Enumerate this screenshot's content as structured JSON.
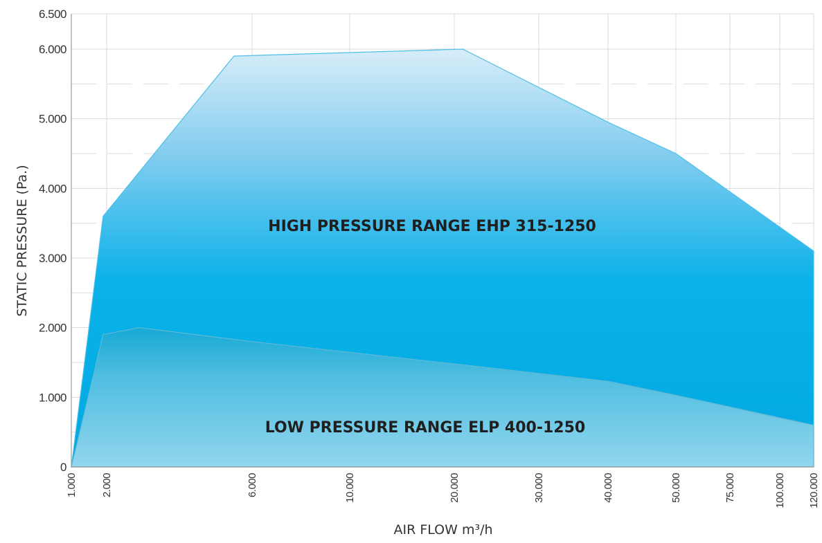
{
  "chart_data": {
    "type": "area",
    "xlabel": "AIR FLOW m³/h",
    "ylabel": "STATIC PRESSURE (Pa.)",
    "x_scale": "categorical-log-like",
    "x_ticks": [
      {
        "value": 1000,
        "label": "1.000"
      },
      {
        "value": 2000,
        "label": "2.000"
      },
      {
        "value": 6000,
        "label": "6.000"
      },
      {
        "value": 10000,
        "label": "10.000"
      },
      {
        "value": 20000,
        "label": "20.000"
      },
      {
        "value": 30000,
        "label": "30.000"
      },
      {
        "value": 40000,
        "label": "40.000"
      },
      {
        "value": 50000,
        "label": "50.000"
      },
      {
        "value": 75000,
        "label": "75.000"
      },
      {
        "value": 100000,
        "label": "100.000"
      },
      {
        "value": 120000,
        "label": "120.000"
      }
    ],
    "y_ticks": [
      {
        "value": 0,
        "label": "0"
      },
      {
        "value": 1000,
        "label": "1.000"
      },
      {
        "value": 2000,
        "label": "2.000"
      },
      {
        "value": 3000,
        "label": "3.000"
      },
      {
        "value": 4000,
        "label": "4.000"
      },
      {
        "value": 5000,
        "label": "5.000"
      },
      {
        "value": 6000,
        "label": "6.000"
      },
      {
        "value": 6500,
        "label": "6.500"
      }
    ],
    "ylim": [
      0,
      6500
    ],
    "xlim": [
      1000,
      120000
    ],
    "grid": true,
    "series": [
      {
        "name": "HIGH PRESSURE RANGE EHP 315-1250",
        "color": "#0fb4ea",
        "points": [
          [
            1000,
            0
          ],
          [
            1900,
            3600
          ],
          [
            5500,
            5900
          ],
          [
            10000,
            5950
          ],
          [
            21000,
            6000
          ],
          [
            40000,
            4950
          ],
          [
            50000,
            4500
          ],
          [
            120000,
            3100
          ]
        ]
      },
      {
        "name": "LOW PRESSURE RANGE ELP 400-1250",
        "color": "#7ccbe2",
        "points": [
          [
            1000,
            0
          ],
          [
            1900,
            1900
          ],
          [
            2900,
            2000
          ],
          [
            6000,
            1800
          ],
          [
            20000,
            1480
          ],
          [
            40000,
            1230
          ],
          [
            50000,
            1030
          ],
          [
            120000,
            600
          ]
        ]
      }
    ]
  }
}
